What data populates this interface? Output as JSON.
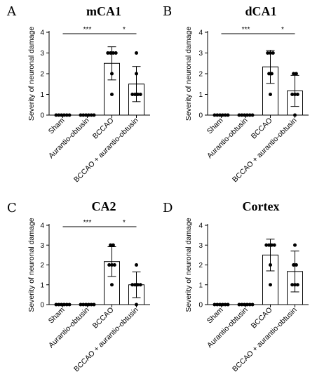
{
  "chart_data": [
    {
      "type": "bar",
      "panel_label": "A",
      "title": "mCA1",
      "ylabel": "Severity of neuronal damage",
      "ylim": [
        0,
        4
      ],
      "yticks": [
        0,
        1,
        2,
        3,
        4
      ],
      "categories": [
        "Sham",
        "Aurantio-obtusin",
        "BCCAO",
        "BCCAO + aurantio-obtusin"
      ],
      "values": [
        0,
        0,
        2.5,
        1.5
      ],
      "errors": [
        0,
        0,
        0.8,
        0.85
      ],
      "points": [
        [
          0,
          0,
          0,
          0,
          0,
          0
        ],
        [
          0,
          0,
          0,
          0,
          0,
          0
        ],
        [
          3,
          3,
          3,
          3,
          2,
          1
        ],
        [
          3,
          2,
          1,
          1,
          1,
          1
        ]
      ],
      "significance": [
        {
          "from": 0,
          "to": 2,
          "label": "***"
        },
        {
          "from": 2,
          "to": 3,
          "label": "*"
        }
      ]
    },
    {
      "type": "bar",
      "panel_label": "B",
      "title": "dCA1",
      "ylabel": "Severity of neuronal damage",
      "ylim": [
        0,
        4
      ],
      "yticks": [
        0,
        1,
        2,
        3,
        4
      ],
      "categories": [
        "Sham",
        "Aurantio-obtusin",
        "BCCAO",
        "BCCAO + aurantio-obtusin"
      ],
      "values": [
        0,
        0,
        2.33,
        1.17
      ],
      "errors": [
        0,
        0,
        0.8,
        0.75
      ],
      "points": [
        [
          0,
          0,
          0,
          0,
          0,
          0
        ],
        [
          0,
          0,
          0,
          0,
          0,
          0
        ],
        [
          3,
          3,
          3,
          2,
          2,
          1
        ],
        [
          2,
          2,
          1,
          1,
          1,
          0
        ]
      ],
      "significance": [
        {
          "from": 0,
          "to": 2,
          "label": "***"
        },
        {
          "from": 2,
          "to": 3,
          "label": "*"
        }
      ]
    },
    {
      "type": "bar",
      "panel_label": "C",
      "title": "CA2",
      "ylabel": "Severity of neuronal damage",
      "ylim": [
        0,
        4
      ],
      "yticks": [
        0,
        1,
        2,
        3,
        4
      ],
      "categories": [
        "Sham",
        "Aurantio-obtusin",
        "BCCAO",
        "BCCAO + aurantio-obtusin"
      ],
      "values": [
        0,
        0,
        2.17,
        1.0
      ],
      "errors": [
        0,
        0,
        0.75,
        0.65
      ],
      "points": [
        [
          0,
          0,
          0,
          0,
          0,
          0
        ],
        [
          0,
          0,
          0,
          0,
          0,
          0
        ],
        [
          3,
          3,
          2,
          2,
          2,
          1
        ],
        [
          2,
          1,
          1,
          1,
          1,
          0
        ]
      ],
      "significance": [
        {
          "from": 0,
          "to": 2,
          "label": "***"
        },
        {
          "from": 2,
          "to": 3,
          "label": "*"
        }
      ]
    },
    {
      "type": "bar",
      "panel_label": "D",
      "title": "Cortex",
      "ylabel": "Severity of neuronal damage",
      "ylim": [
        0,
        4
      ],
      "yticks": [
        0,
        1,
        2,
        3,
        4
      ],
      "categories": [
        "Sham",
        "Aurantio-obtusin",
        "BCCAO",
        "BCCAO + aurantio-obtusin"
      ],
      "values": [
        0,
        0,
        2.5,
        1.67
      ],
      "errors": [
        0,
        0,
        0.8,
        1.03
      ],
      "points": [
        [
          0,
          0,
          0,
          0,
          0,
          0
        ],
        [
          0,
          0,
          0,
          0,
          0,
          0
        ],
        [
          3,
          3,
          3,
          3,
          2,
          1
        ],
        [
          3,
          2,
          2,
          1,
          1,
          1
        ]
      ],
      "significance": []
    }
  ]
}
